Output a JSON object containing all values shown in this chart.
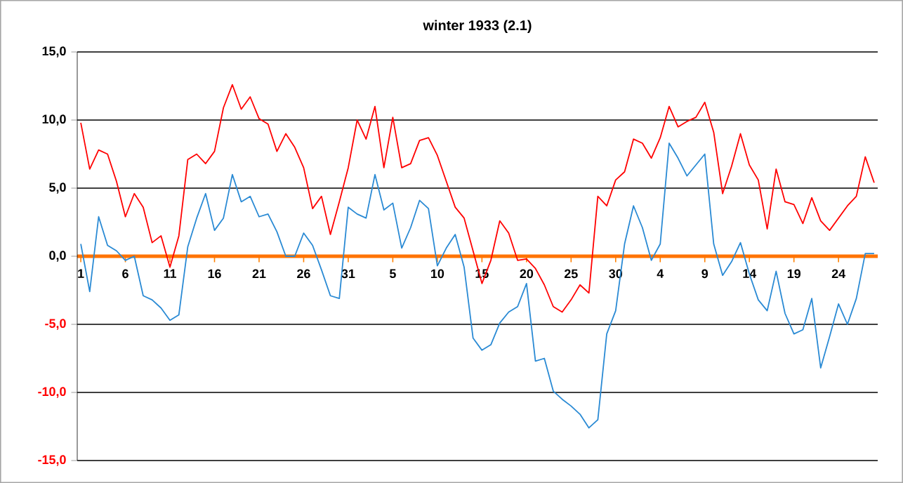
{
  "chart_data": {
    "type": "line",
    "title": "winter 1933 (2.1)",
    "categories": [
      "1",
      null,
      null,
      null,
      null,
      "6",
      null,
      null,
      null,
      null,
      "11",
      null,
      null,
      null,
      null,
      "16",
      null,
      null,
      null,
      null,
      "21",
      null,
      null,
      null,
      null,
      "26",
      null,
      null,
      null,
      null,
      "31",
      null,
      null,
      null,
      null,
      "5",
      null,
      null,
      null,
      null,
      "10",
      null,
      null,
      null,
      null,
      "15",
      null,
      null,
      null,
      null,
      "20",
      null,
      null,
      null,
      null,
      "25",
      null,
      null,
      null,
      null,
      "30",
      null,
      null,
      null,
      null,
      "4",
      null,
      null,
      null,
      null,
      "9",
      null,
      null,
      null,
      null,
      "14",
      null,
      null,
      null,
      null,
      "19",
      null,
      null,
      null,
      null,
      "24",
      null,
      null,
      null,
      null
    ],
    "series": [
      {
        "color": "#ff0000",
        "values": [
          9.8,
          6.4,
          7.8,
          7.5,
          5.5,
          2.9,
          4.6,
          3.6,
          1.0,
          1.5,
          -0.8,
          1.5,
          7.1,
          7.5,
          6.8,
          7.7,
          10.9,
          12.6,
          10.8,
          11.7,
          10.1,
          9.7,
          7.7,
          9.0,
          8.0,
          6.5,
          3.5,
          4.4,
          1.6,
          4.0,
          6.5,
          10.0,
          8.6,
          11.0,
          6.5,
          10.2,
          6.5,
          6.8,
          8.5,
          8.7,
          7.4,
          5.5,
          3.6,
          2.8,
          0.4,
          -2.0,
          -0.3,
          2.6,
          1.7,
          -0.3,
          -0.2,
          -0.9,
          -2.1,
          -3.7,
          -4.1,
          -3.2,
          -2.1,
          -2.7,
          4.4,
          3.7,
          5.6,
          6.2,
          8.6,
          8.3,
          7.2,
          8.7,
          11.0,
          9.5,
          9.9,
          10.2,
          11.3,
          9.1,
          4.6,
          6.6,
          9.0,
          6.7,
          5.6,
          2.0,
          6.4,
          4.0,
          3.8,
          2.4,
          4.3,
          2.6,
          1.9,
          2.8,
          3.7,
          4.4,
          7.3,
          5.4
        ]
      },
      {
        "color": "#2a8ad4",
        "values": [
          0.9,
          -2.6,
          2.9,
          0.8,
          0.4,
          -0.3,
          0.0,
          -2.9,
          -3.2,
          -3.8,
          -4.7,
          -4.3,
          0.7,
          2.8,
          4.6,
          1.9,
          2.8,
          6.0,
          4.0,
          4.4,
          2.9,
          3.1,
          1.8,
          0.0,
          0.0,
          1.7,
          0.8,
          -1.0,
          -2.9,
          -3.1,
          3.6,
          3.1,
          2.8,
          6.0,
          3.4,
          3.9,
          0.6,
          2.1,
          4.1,
          3.5,
          -0.7,
          0.6,
          1.6,
          -0.8,
          -6.0,
          -6.9,
          -6.5,
          -4.9,
          -4.1,
          -3.7,
          -2.0,
          -7.7,
          -7.5,
          -9.9,
          -10.5,
          -11.0,
          -11.6,
          -12.6,
          -12.0,
          -5.7,
          -4.0,
          0.9,
          3.7,
          2.1,
          -0.3,
          0.9,
          8.3,
          7.2,
          5.9,
          6.7,
          7.5,
          0.9,
          -1.4,
          -0.4,
          1.0,
          -1.3,
          -3.2,
          -4.0,
          -1.1,
          -4.2,
          -5.7,
          -5.4,
          -3.1,
          -8.2,
          -5.9,
          -3.5,
          -5.0,
          -3.1,
          0.2,
          0.2
        ]
      }
    ],
    "ylim": [
      -15,
      15
    ],
    "yticks": [
      {
        "value": -15,
        "label": "-15,0"
      },
      {
        "value": -10,
        "label": "-10,0"
      },
      {
        "value": -5,
        "label": "-5,0"
      },
      {
        "value": 0,
        "label": "0,0"
      },
      {
        "value": 5,
        "label": "5,0"
      },
      {
        "value": 10,
        "label": "10,0"
      },
      {
        "value": 15,
        "label": "15,0"
      }
    ],
    "grid": "y"
  }
}
